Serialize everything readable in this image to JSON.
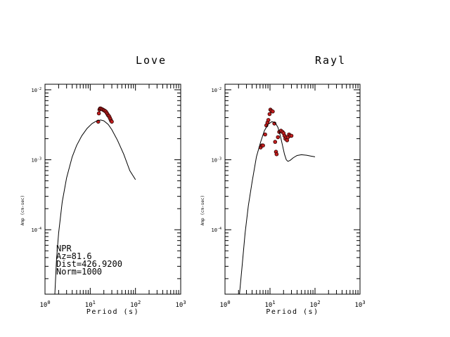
{
  "chart_data": [
    {
      "type": "scatter",
      "title": "Love",
      "xlabel": "Period (s)",
      "ylabel": "Amp (cm-sec)",
      "x_scale": "log",
      "y_scale": "log",
      "xlim": [
        1,
        1000
      ],
      "ylim": [
        1.2e-05,
        0.012
      ],
      "x_ticks": [
        {
          "value": 1,
          "base": "10",
          "exp": "0"
        },
        {
          "value": 10,
          "base": "10",
          "exp": "1"
        },
        {
          "value": 100,
          "base": "10",
          "exp": "2"
        },
        {
          "value": 1000,
          "base": "10",
          "exp": "3"
        }
      ],
      "y_ticks": [
        {
          "value": 0.01,
          "base": "10",
          "exp": "-2"
        },
        {
          "value": 0.001,
          "base": "10",
          "exp": "-3"
        },
        {
          "value": 0.0001,
          "base": "10",
          "exp": "-4"
        }
      ],
      "annotations": [
        "NPR",
        "Az=81.6",
        "Dist=426.9200",
        "Norm=1000"
      ],
      "series": [
        {
          "kind": "observed",
          "points": [
            [
              15.0,
              0.0035
            ],
            [
              15.5,
              0.0046
            ],
            [
              16.0,
              0.0052
            ],
            [
              16.5,
              0.0054
            ],
            [
              17.0,
              0.0054
            ],
            [
              18.0,
              0.0053
            ],
            [
              19.0,
              0.0052
            ],
            [
              20.0,
              0.0051
            ],
            [
              21.0,
              0.005
            ],
            [
              22.0,
              0.0049
            ],
            [
              23.0,
              0.0047
            ],
            [
              24.0,
              0.0045
            ],
            [
              25.0,
              0.0043
            ],
            [
              26.0,
              0.0042
            ],
            [
              27.0,
              0.004
            ],
            [
              28.0,
              0.0038
            ],
            [
              29.0,
              0.0036
            ],
            [
              30.0,
              0.0035
            ]
          ]
        },
        {
          "kind": "model",
          "points": [
            [
              1.65,
              1.2e-05
            ],
            [
              1.8,
              3.8e-05
            ],
            [
              2.0,
              9e-05
            ],
            [
              2.4,
              0.00025
            ],
            [
              3.0,
              0.00055
            ],
            [
              4.0,
              0.0011
            ],
            [
              5.0,
              0.0016
            ],
            [
              6.5,
              0.0022
            ],
            [
              8.5,
              0.0028
            ],
            [
              11.0,
              0.0033
            ],
            [
              14.0,
              0.0036
            ],
            [
              17.0,
              0.0037
            ],
            [
              20.0,
              0.0036
            ],
            [
              25.0,
              0.0032
            ],
            [
              30.0,
              0.0027
            ],
            [
              40.0,
              0.0019
            ],
            [
              55.0,
              0.0012
            ],
            [
              75.0,
              0.0007
            ],
            [
              100.0,
              0.00052
            ]
          ]
        }
      ]
    },
    {
      "type": "scatter",
      "title": "Rayl",
      "xlabel": "Period (s)",
      "ylabel": "Amp (cm-sec)",
      "x_scale": "log",
      "y_scale": "log",
      "xlim": [
        1,
        1000
      ],
      "ylim": [
        1.2e-05,
        0.012
      ],
      "x_ticks": [
        {
          "value": 1,
          "base": "10",
          "exp": "0"
        },
        {
          "value": 10,
          "base": "10",
          "exp": "1"
        },
        {
          "value": 100,
          "base": "10",
          "exp": "2"
        },
        {
          "value": 1000,
          "base": "10",
          "exp": "3"
        }
      ],
      "y_ticks": [
        {
          "value": 0.01,
          "base": "10",
          "exp": "-2"
        },
        {
          "value": 0.001,
          "base": "10",
          "exp": "-3"
        },
        {
          "value": 0.0001,
          "base": "10",
          "exp": "-4"
        }
      ],
      "annotations": [],
      "series": [
        {
          "kind": "observed",
          "points": [
            [
              6.2,
              0.0015
            ],
            [
              6.6,
              0.0016
            ],
            [
              7.0,
              0.0016
            ],
            [
              7.8,
              0.0023
            ],
            [
              8.3,
              0.0031
            ],
            [
              8.8,
              0.0034
            ],
            [
              9.2,
              0.0037
            ],
            [
              9.8,
              0.0045
            ],
            [
              10.2,
              0.0052
            ],
            [
              10.8,
              0.005
            ],
            [
              11.5,
              0.0049
            ],
            [
              12.5,
              0.0033
            ],
            [
              13.0,
              0.0018
            ],
            [
              13.6,
              0.0013
            ],
            [
              14.0,
              0.0012
            ],
            [
              15.0,
              0.0021
            ],
            [
              16.0,
              0.0025
            ],
            [
              17.5,
              0.0026
            ],
            [
              19.0,
              0.0025
            ],
            [
              20.0,
              0.0024
            ],
            [
              21.0,
              0.0022
            ],
            [
              22.0,
              0.002
            ],
            [
              23.0,
              0.0021
            ],
            [
              24.0,
              0.0019
            ],
            [
              25.0,
              0.0021
            ],
            [
              26.5,
              0.0023
            ],
            [
              28.0,
              0.0022
            ],
            [
              30.0,
              0.0022
            ]
          ]
        },
        {
          "kind": "model",
          "points": [
            [
              2.1,
              1.2e-05
            ],
            [
              2.4,
              3e-05
            ],
            [
              2.8,
              9e-05
            ],
            [
              3.3,
              0.00022
            ],
            [
              4.0,
              0.00048
            ],
            [
              5.0,
              0.0011
            ],
            [
              6.2,
              0.0018
            ],
            [
              7.5,
              0.0026
            ],
            [
              9.0,
              0.0032
            ],
            [
              11.0,
              0.0035
            ],
            [
              13.0,
              0.0034
            ],
            [
              15.0,
              0.0029
            ],
            [
              17.0,
              0.0022
            ],
            [
              19.0,
              0.0016
            ],
            [
              21.0,
              0.0012
            ],
            [
              23.0,
              0.001
            ],
            [
              25.0,
              0.00095
            ],
            [
              28.0,
              0.00098
            ],
            [
              33.0,
              0.00107
            ],
            [
              40.0,
              0.00115
            ],
            [
              50.0,
              0.00118
            ],
            [
              65.0,
              0.00116
            ],
            [
              80.0,
              0.00113
            ],
            [
              100.0,
              0.0011
            ]
          ]
        }
      ]
    }
  ]
}
